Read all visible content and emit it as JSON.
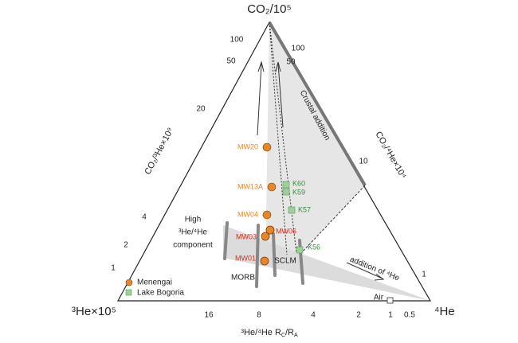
{
  "vertices": {
    "top": "CO₂/10⁵",
    "left": "³He×10⁵",
    "right": "⁴He"
  },
  "axes": {
    "left": {
      "title": "CO₂/³He×10⁹",
      "ticks": [
        "100",
        "50",
        "20",
        "4",
        "2",
        "1"
      ]
    },
    "right": {
      "title": "CO₂/⁴He×10⁴",
      "ticks": [
        "100",
        "50",
        "10",
        "1"
      ]
    },
    "bottom": {
      "title_parts": [
        "³He/⁴He R",
        "C",
        "/R",
        "A"
      ],
      "ticks": [
        "16",
        "8",
        "4",
        "2",
        "1",
        "0.5"
      ]
    }
  },
  "annotations": {
    "high_component": [
      "High",
      "³He/⁴He",
      "component"
    ],
    "crustal": "Crustal addition",
    "helium": "addition of ⁴He",
    "morb": "MORB",
    "sclm": "SCLM",
    "air": "Air"
  },
  "samples": [
    {
      "label": "MW20",
      "group": "Menengai"
    },
    {
      "label": "MW13A",
      "group": "Menengai"
    },
    {
      "label": "MW04",
      "group": "Menengai"
    },
    {
      "label": "MW06",
      "group": "Menengai"
    },
    {
      "label": "MW03",
      "group": "Menengai"
    },
    {
      "label": "MW01",
      "group": "Menengai"
    },
    {
      "label": "K60",
      "group": "Lake Bogoria"
    },
    {
      "label": "K59",
      "group": "Lake Bogoria"
    },
    {
      "label": "K57",
      "group": "Lake Bogoria"
    },
    {
      "label": "K56",
      "group": "Lake Bogoria"
    }
  ],
  "legend": [
    "Menengai",
    "Lake Bogoria"
  ]
}
